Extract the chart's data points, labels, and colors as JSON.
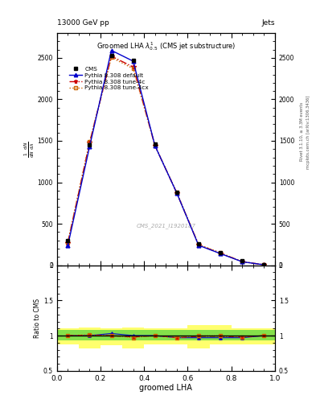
{
  "title_top_left": "13000 GeV pp",
  "title_top_right": "Jets",
  "plot_title": "Groomed LHA $\\lambda^{1}_{0.5}$ (CMS jet substructure)",
  "xlabel": "groomed LHA",
  "watermark": "CMS_2021_I1920187",
  "right_label1": "Rivet 3.1.10, ≥ 3.3M events",
  "right_label2": "mcplots.cern.ch [arXiv:1306.3436]",
  "x_data": [
    0.05,
    0.15,
    0.25,
    0.35,
    0.45,
    0.55,
    0.65,
    0.75,
    0.85,
    0.95
  ],
  "cms_y": [
    300,
    1450,
    2530,
    2470,
    1460,
    880,
    255,
    155,
    50,
    10
  ],
  "py_default_y": [
    235,
    1430,
    2590,
    2460,
    1440,
    870,
    240,
    140,
    42,
    5
  ],
  "py_4c_y": [
    270,
    1480,
    2520,
    2390,
    1440,
    870,
    245,
    145,
    43,
    5
  ],
  "py_4cx_y": [
    278,
    1490,
    2505,
    2370,
    1440,
    878,
    250,
    150,
    44,
    5
  ],
  "ratio_default": [
    1.0,
    1.0,
    1.03,
    1.0,
    1.0,
    0.97,
    0.97,
    0.97,
    0.97,
    1.0
  ],
  "ratio_4c": [
    1.0,
    1.01,
    1.0,
    0.98,
    1.0,
    0.97,
    0.99,
    0.99,
    0.98,
    1.0
  ],
  "ratio_4cx": [
    1.0,
    1.01,
    1.0,
    0.97,
    1.0,
    0.97,
    1.0,
    1.0,
    0.98,
    1.0
  ],
  "green_band_lo": [
    0.93,
    0.93,
    0.93,
    0.93,
    0.93,
    0.93,
    0.93,
    0.93,
    0.93,
    0.93
  ],
  "green_band_hi": [
    1.08,
    1.08,
    1.08,
    1.08,
    1.08,
    1.08,
    1.08,
    1.08,
    1.08,
    1.08
  ],
  "yellow_band_lo": [
    0.88,
    0.82,
    0.86,
    0.82,
    0.88,
    0.88,
    0.82,
    0.88,
    0.88,
    0.88
  ],
  "yellow_band_hi": [
    1.1,
    1.12,
    1.1,
    1.12,
    1.1,
    1.1,
    1.15,
    1.15,
    1.1,
    1.1
  ],
  "color_default": "#0000cc",
  "color_4c": "#cc0000",
  "color_4cx": "#cc6600",
  "color_cms": "#000000",
  "ylim_main": [
    0,
    2800
  ],
  "ylim_ratio": [
    0.5,
    2.0
  ],
  "xlim": [
    0.0,
    1.0
  ],
  "yticks_main": [
    0,
    500,
    1000,
    1500,
    2000,
    2500
  ],
  "yticks_ratio": [
    0.5,
    1.0,
    1.5,
    2.0
  ],
  "ytick_ratio_labels": [
    "0.5",
    "1",
    "1.5",
    "2"
  ]
}
